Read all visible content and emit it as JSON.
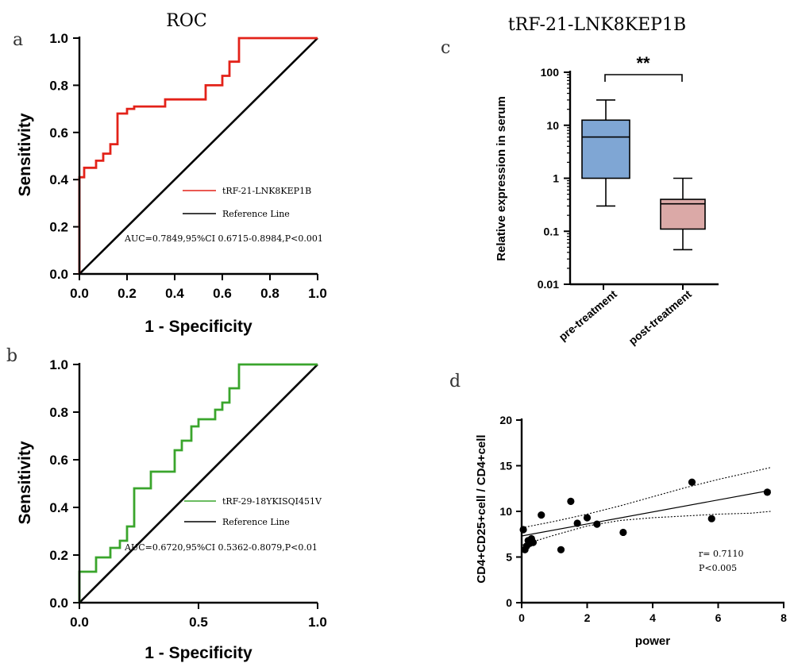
{
  "colors": {
    "roc_a": "#e32219",
    "roc_b": "#3aa52c",
    "reference": "#000000",
    "box_pre": "#7fa6d4",
    "box_post": "#dba9a7",
    "scatter_points": "#000000"
  },
  "panel_labels": {
    "a": "a",
    "b": "b",
    "c": "c",
    "d": "d"
  },
  "chart_data": [
    {
      "id": "a",
      "type": "line",
      "title": "ROC",
      "xlabel": "1 - Specificity",
      "ylabel": "Sensitivity",
      "xlim": [
        0,
        1
      ],
      "ylim": [
        0,
        1
      ],
      "xticks": [
        "0.0",
        "0.2",
        "0.4",
        "0.6",
        "0.8",
        "1.0"
      ],
      "yticks": [
        "0.0",
        "0.2",
        "0.4",
        "0.6",
        "0.8",
        "1.0"
      ],
      "series": [
        {
          "name": "tRF-21-LNK8KEP1B",
          "x": [
            0,
            0,
            0.02,
            0.02,
            0.07,
            0.07,
            0.1,
            0.1,
            0.13,
            0.13,
            0.16,
            0.16,
            0.2,
            0.2,
            0.23,
            0.23,
            0.36,
            0.36,
            0.53,
            0.53,
            0.6,
            0.6,
            0.63,
            0.63,
            0.67,
            0.67,
            1.0
          ],
          "y": [
            0,
            0.41,
            0.41,
            0.45,
            0.45,
            0.48,
            0.48,
            0.51,
            0.51,
            0.55,
            0.55,
            0.68,
            0.68,
            0.7,
            0.7,
            0.71,
            0.71,
            0.74,
            0.74,
            0.8,
            0.8,
            0.84,
            0.84,
            0.9,
            0.9,
            1.0,
            1.0
          ]
        },
        {
          "name": "Reference Line",
          "x": [
            0,
            1
          ],
          "y": [
            0,
            1
          ]
        }
      ],
      "annotation": "AUC=0.7849,95%CI 0.6715-0.8984,P<0.001"
    },
    {
      "id": "b",
      "type": "line",
      "xlabel": "1 - Specificity",
      "ylabel": "Sensitivity",
      "xlim": [
        0,
        1
      ],
      "ylim": [
        0,
        1
      ],
      "xticks": [
        "0.0",
        "0.5",
        "1.0"
      ],
      "xtick_values": [
        0,
        0.5,
        1
      ],
      "yticks": [
        "0.0",
        "0.2",
        "0.4",
        "0.6",
        "0.8",
        "1.0"
      ],
      "series": [
        {
          "name": "tRF-29-18YKISQI451V",
          "x": [
            0,
            0,
            0.07,
            0.07,
            0.13,
            0.13,
            0.17,
            0.17,
            0.2,
            0.2,
            0.23,
            0.23,
            0.3,
            0.3,
            0.4,
            0.4,
            0.43,
            0.43,
            0.47,
            0.47,
            0.5,
            0.5,
            0.57,
            0.57,
            0.6,
            0.6,
            0.63,
            0.63,
            0.67,
            0.67,
            1.0
          ],
          "y": [
            0,
            0.13,
            0.13,
            0.19,
            0.19,
            0.23,
            0.23,
            0.26,
            0.26,
            0.32,
            0.32,
            0.48,
            0.48,
            0.55,
            0.55,
            0.64,
            0.64,
            0.68,
            0.68,
            0.74,
            0.74,
            0.77,
            0.77,
            0.81,
            0.81,
            0.84,
            0.84,
            0.9,
            0.9,
            1.0,
            1.0
          ]
        },
        {
          "name": "Reference Line",
          "x": [
            0,
            1
          ],
          "y": [
            0,
            1
          ]
        }
      ],
      "annotation": "AUC=0.6720,95%CI 0.5362-0.8079,P<0.01"
    },
    {
      "id": "c",
      "type": "box",
      "title": "tRF-21-LNK8KEP1B",
      "ylabel": "Relative expression in serum",
      "yscale": "log",
      "ylim": [
        0.01,
        100
      ],
      "yticks": [
        "0.01",
        "0.1",
        "1",
        "10",
        "100"
      ],
      "ytick_values": [
        0.01,
        0.1,
        1,
        10,
        100
      ],
      "categories": [
        "pre-treatment",
        "post-treatment"
      ],
      "boxes": [
        {
          "name": "pre-treatment",
          "min": 0.3,
          "q1": 1.0,
          "median": 6.0,
          "q3": 12.5,
          "max": 30
        },
        {
          "name": "post-treatment",
          "min": 0.045,
          "q1": 0.11,
          "median": 0.33,
          "q3": 0.4,
          "max": 1.0
        }
      ],
      "significance": "**"
    },
    {
      "id": "d",
      "type": "scatter",
      "xlabel": "power",
      "ylabel": "CD4+CD25+cell / CD4+cell",
      "xlim": [
        0,
        8
      ],
      "ylim": [
        0,
        20
      ],
      "xticks": [
        "0",
        "2",
        "4",
        "6",
        "8"
      ],
      "xtick_values": [
        0,
        2,
        4,
        6,
        8
      ],
      "yticks": [
        "0",
        "5",
        "10",
        "15",
        "20"
      ],
      "ytick_values": [
        0,
        5,
        10,
        15,
        20
      ],
      "points": {
        "x": [
          0.05,
          0.1,
          0.15,
          0.2,
          0.25,
          0.3,
          0.35,
          0.6,
          1.2,
          1.5,
          1.7,
          2.0,
          2.3,
          3.1,
          5.2,
          5.8,
          7.5
        ],
        "y": [
          8.0,
          5.8,
          6.2,
          6.8,
          6.5,
          7.0,
          6.6,
          9.6,
          5.8,
          11.1,
          8.7,
          9.3,
          8.6,
          7.7,
          13.2,
          9.2,
          12.1
        ]
      },
      "fit": {
        "x": [
          0,
          7.6
        ],
        "y": [
          7.3,
          12.3
        ]
      },
      "ci_upper": {
        "x": [
          0,
          1,
          2,
          3,
          4,
          5,
          6,
          7,
          7.6
        ],
        "y": [
          8.2,
          8.9,
          9.7,
          10.6,
          11.6,
          12.6,
          13.5,
          14.3,
          14.8
        ]
      },
      "ci_lower": {
        "x": [
          0,
          1,
          2,
          3,
          4,
          5,
          6,
          7,
          7.6
        ],
        "y": [
          6.3,
          7.4,
          8.4,
          9.0,
          9.3,
          9.5,
          9.7,
          9.8,
          10.0
        ]
      },
      "annotation_r": "r= 0.7110",
      "annotation_p": "P<0.005"
    }
  ]
}
